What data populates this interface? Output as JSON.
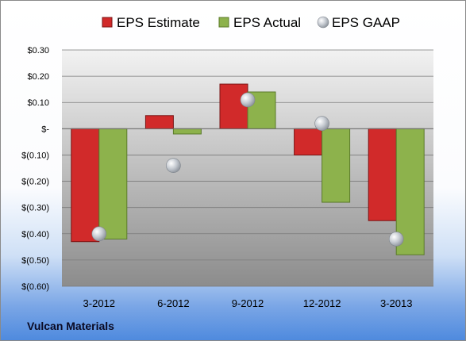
{
  "chart_data": {
    "type": "bar",
    "categories": [
      "3-2012",
      "6-2012",
      "9-2012",
      "12-2012",
      "3-2013"
    ],
    "series": [
      {
        "name": "EPS Estimate",
        "kind": "bar",
        "color": "#d12a2a",
        "values": [
          -0.43,
          0.05,
          0.17,
          -0.1,
          -0.35
        ]
      },
      {
        "name": "EPS Actual",
        "kind": "bar",
        "color": "#8db24c",
        "values": [
          -0.42,
          -0.02,
          0.14,
          -0.28,
          -0.48
        ]
      },
      {
        "name": "EPS GAAP",
        "kind": "scatter",
        "color": "#b9bfc7",
        "values": [
          -0.4,
          -0.14,
          0.11,
          0.02,
          -0.42
        ]
      }
    ],
    "ylim": [
      -0.6,
      0.3
    ],
    "yticks": [
      0.3,
      0.2,
      0.1,
      0,
      -0.1,
      -0.2,
      -0.3,
      -0.4,
      -0.5,
      -0.6
    ],
    "ytick_labels": [
      "$0.30",
      "$0.20",
      "$0.10",
      "$-",
      "$(0.10)",
      "$(0.20)",
      "$(0.30)",
      "$(0.40)",
      "$(0.50)",
      "$(0.60)"
    ],
    "grid": true,
    "legend_position": "top"
  },
  "footer": {
    "company": "Vulcan Materials"
  }
}
